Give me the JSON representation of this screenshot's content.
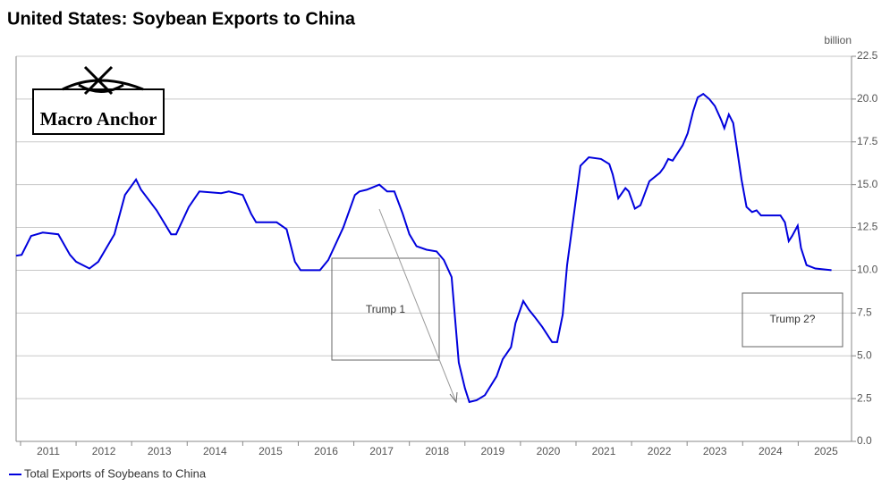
{
  "chart_data": {
    "type": "line",
    "title": "United States: Soybean Exports to China",
    "y_unit": "billion",
    "logo": "Macro Anchor",
    "annotations": [
      "Trump 1",
      "Trump 2?"
    ],
    "xlim": [
      2010.92,
      2025.96
    ],
    "xticks": [
      2011,
      2012,
      2013,
      2014,
      2015,
      2016,
      2017,
      2018,
      2019,
      2020,
      2021,
      2022,
      2023,
      2024,
      2025
    ],
    "ylim": [
      0,
      22.5
    ],
    "yticks": [
      {
        "value": 0,
        "label": "0.0"
      },
      2.5,
      {
        "value": 5,
        "label": "5.0"
      },
      7.5,
      {
        "value": 10,
        "label": "10.0"
      },
      12.5,
      {
        "value": 15,
        "label": "15.0"
      },
      17.5,
      {
        "value": 20,
        "label": "20.0"
      },
      22.5
    ],
    "grid": true,
    "x": [
      2010.92,
      2011.02,
      2011.19,
      2011.4,
      2011.68,
      2011.89,
      2012.0,
      2012.24,
      2012.4,
      2012.69,
      2012.88,
      2013.08,
      2013.17,
      2013.45,
      2013.71,
      2013.8,
      2014.03,
      2014.22,
      2014.61,
      2014.75,
      2015.0,
      2015.15,
      2015.24,
      2015.61,
      2015.79,
      2015.94,
      2016.04,
      2016.18,
      2016.39,
      2016.54,
      2016.81,
      2017.02,
      2017.1,
      2017.23,
      2017.46,
      2017.6,
      2017.73,
      2017.88,
      2018.0,
      2018.13,
      2018.31,
      2018.49,
      2018.62,
      2018.76,
      2018.89,
      2019.0,
      2019.08,
      2019.21,
      2019.36,
      2019.57,
      2019.68,
      2019.83,
      2019.91,
      2020.05,
      2020.15,
      2020.25,
      2020.39,
      2020.57,
      2020.66,
      2020.76,
      2020.84,
      2021.08,
      2021.23,
      2021.45,
      2021.6,
      2021.66,
      2021.76,
      2021.89,
      2021.95,
      2022.06,
      2022.16,
      2022.32,
      2022.51,
      2022.58,
      2022.66,
      2022.74,
      2022.92,
      2023.01,
      2023.11,
      2023.19,
      2023.29,
      2023.4,
      2023.5,
      2023.61,
      2023.67,
      2023.75,
      2023.83,
      2023.98,
      2024.07,
      2024.17,
      2024.25,
      2024.33,
      2024.47,
      2024.68,
      2024.76,
      2024.83,
      2024.89,
      2024.99,
      2025.05,
      2025.15,
      2025.31,
      2025.6
    ],
    "series": [
      {
        "name": "Total Exports of Soybeans to China",
        "color": "#0000dd",
        "values": [
          10.85,
          10.9,
          12.0,
          12.2,
          12.1,
          10.9,
          10.5,
          10.1,
          10.5,
          12.1,
          14.4,
          15.3,
          14.7,
          13.5,
          12.1,
          12.1,
          13.7,
          14.6,
          14.5,
          14.6,
          14.4,
          13.3,
          12.8,
          12.8,
          12.4,
          10.5,
          10.0,
          10.0,
          10.0,
          10.6,
          12.5,
          14.4,
          14.6,
          14.7,
          15.0,
          14.6,
          14.6,
          13.3,
          12.1,
          11.4,
          11.2,
          11.1,
          10.6,
          9.6,
          4.6,
          3.1,
          2.3,
          2.4,
          2.7,
          3.8,
          4.8,
          5.5,
          6.9,
          8.2,
          7.7,
          7.3,
          6.7,
          5.8,
          5.8,
          7.4,
          10.3,
          16.1,
          16.6,
          16.5,
          16.2,
          15.6,
          14.2,
          14.8,
          14.6,
          13.6,
          13.8,
          15.2,
          15.7,
          16.0,
          16.5,
          16.4,
          17.3,
          18.0,
          19.3,
          20.1,
          20.3,
          20.0,
          19.6,
          18.8,
          18.3,
          19.1,
          18.6,
          15.3,
          13.7,
          13.4,
          13.5,
          13.2,
          13.2,
          13.2,
          12.8,
          11.7,
          12.0,
          12.6,
          11.3,
          10.3,
          10.1,
          10.0
        ]
      }
    ]
  }
}
